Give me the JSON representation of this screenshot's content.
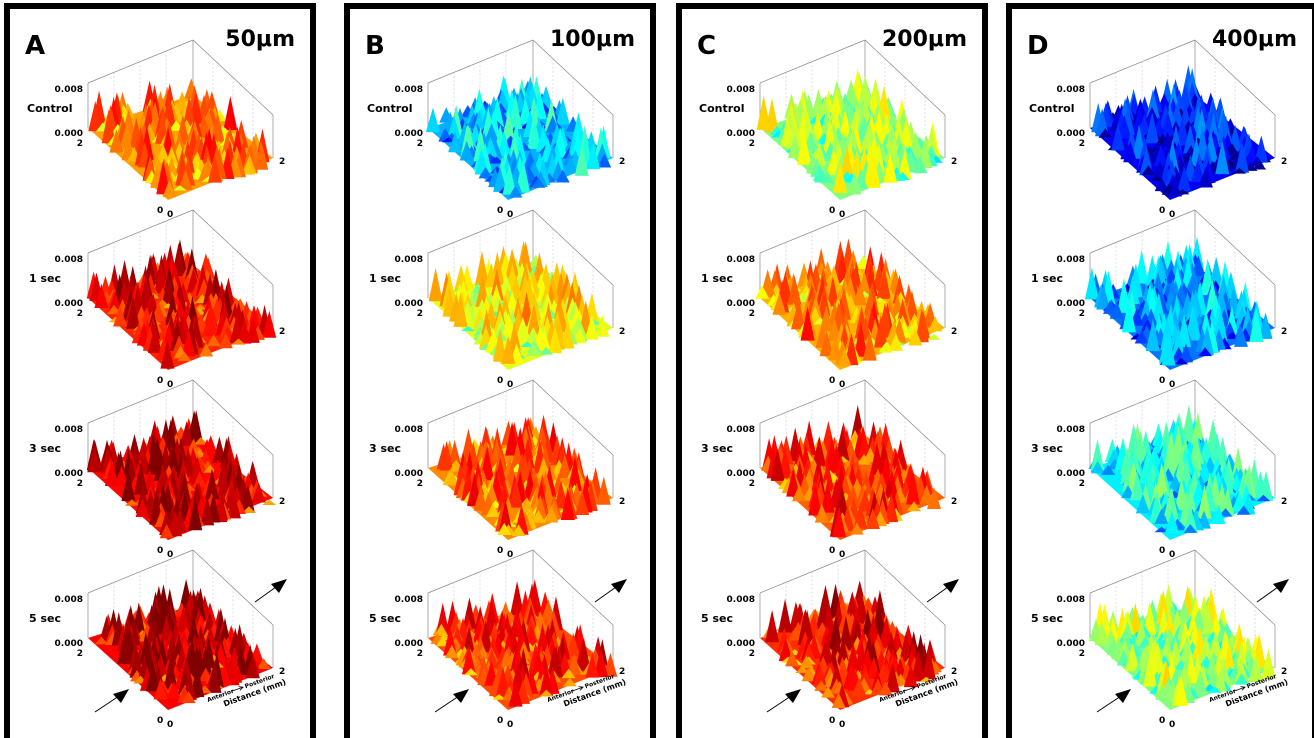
{
  "panels": [
    {
      "letter": "A",
      "size": "50μm"
    },
    {
      "letter": "B",
      "size": "100μm"
    },
    {
      "letter": "C",
      "size": "200μm"
    },
    {
      "letter": "D",
      "size": "400μm"
    }
  ],
  "rows": [
    "Control",
    "1 sec",
    "3 sec",
    "5 sec"
  ],
  "axis": {
    "z_top": "0.008",
    "z_bottom": "0.000",
    "left_end": "2",
    "right_end": "2",
    "origin": "0"
  },
  "axis_titles": {
    "direction_left": "Anterior",
    "direction_right": "Posterior",
    "distance": "Distance (mm)"
  }
}
